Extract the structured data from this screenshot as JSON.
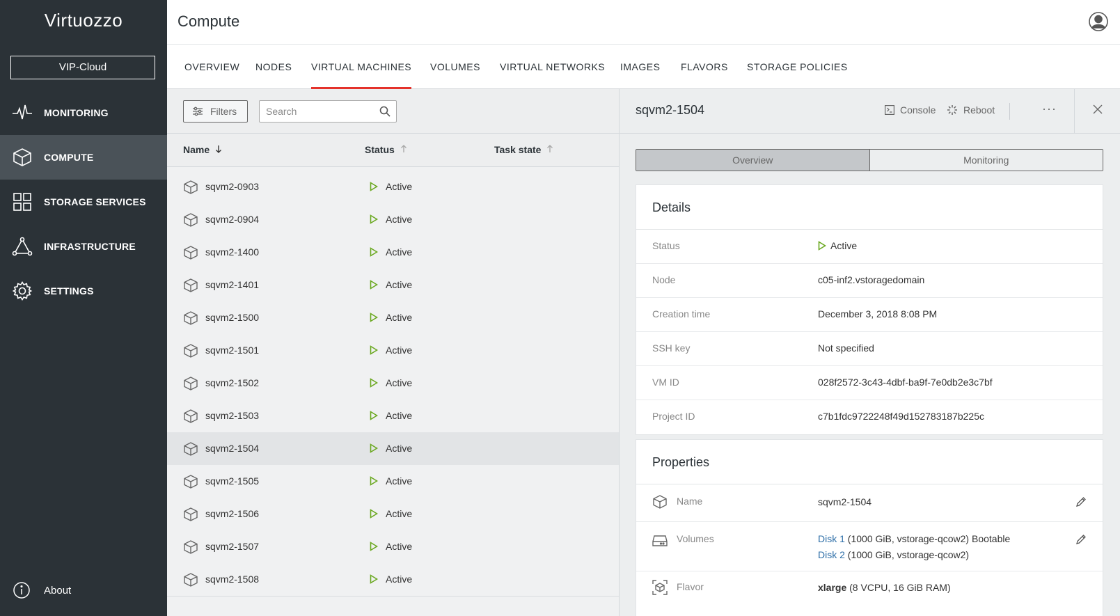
{
  "brand": {
    "logo_text": "Virtuozzo",
    "logo_mark": "z"
  },
  "sidebar": {
    "project_button": "VIP-Cloud",
    "items": [
      {
        "label": "MONITORING",
        "icon": "pulse-icon"
      },
      {
        "label": "COMPUTE",
        "icon": "cube-icon",
        "active": true
      },
      {
        "label": "STORAGE SERVICES",
        "icon": "grid-icon"
      },
      {
        "label": "INFRASTRUCTURE",
        "icon": "network-triangle-icon"
      },
      {
        "label": "SETTINGS",
        "icon": "gear-icon"
      }
    ],
    "about_label": "About"
  },
  "header": {
    "title": "Compute"
  },
  "tabs": [
    {
      "label": "OVERVIEW"
    },
    {
      "label": "NODES"
    },
    {
      "label": "VIRTUAL MACHINES",
      "active": true
    },
    {
      "label": "VOLUMES"
    },
    {
      "label": "VIRTUAL NETWORKS"
    },
    {
      "label": "IMAGES"
    },
    {
      "label": "FLAVORS"
    },
    {
      "label": "STORAGE POLICIES"
    }
  ],
  "list": {
    "filters_label": "Filters",
    "search_placeholder": "Search",
    "columns": {
      "name": "Name",
      "status": "Status",
      "task_state": "Task state"
    },
    "rows": [
      {
        "name": "sqvm2-0903",
        "status": "Active"
      },
      {
        "name": "sqvm2-0904",
        "status": "Active"
      },
      {
        "name": "sqvm2-1400",
        "status": "Active"
      },
      {
        "name": "sqvm2-1401",
        "status": "Active"
      },
      {
        "name": "sqvm2-1500",
        "status": "Active"
      },
      {
        "name": "sqvm2-1501",
        "status": "Active"
      },
      {
        "name": "sqvm2-1502",
        "status": "Active"
      },
      {
        "name": "sqvm2-1503",
        "status": "Active"
      },
      {
        "name": "sqvm2-1504",
        "status": "Active",
        "selected": true
      },
      {
        "name": "sqvm2-1505",
        "status": "Active"
      },
      {
        "name": "sqvm2-1506",
        "status": "Active"
      },
      {
        "name": "sqvm2-1507",
        "status": "Active"
      },
      {
        "name": "sqvm2-1508",
        "status": "Active"
      }
    ]
  },
  "detail": {
    "title": "sqvm2-1504",
    "console_label": "Console",
    "reboot_label": "Reboot",
    "more_label": "···",
    "segments": {
      "overview": "Overview",
      "monitoring": "Monitoring"
    },
    "details": {
      "title": "Details",
      "rows": [
        {
          "key": "Status",
          "value": "Active"
        },
        {
          "key": "Node",
          "value": "c05-inf2.vstoragedomain"
        },
        {
          "key": "Creation time",
          "value": "December 3, 2018 8:08 PM"
        },
        {
          "key": "SSH key",
          "value": "Not specified"
        },
        {
          "key": "VM ID",
          "value": "028f2572-3c43-4dbf-ba9f-7e0db2e3c7bf"
        },
        {
          "key": "Project ID",
          "value": "c7b1fdc9722248f49d152783187b225c"
        }
      ]
    },
    "properties": {
      "title": "Properties",
      "name": {
        "key": "Name",
        "value": "sqvm2-1504"
      },
      "volumes": {
        "key": "Volumes",
        "disk1_link": "Disk 1",
        "disk1_info": " (1000 GiB, vstorage-qcow2) Bootable",
        "disk2_link": "Disk 2",
        "disk2_info": " (1000 GiB, vstorage-qcow2)"
      },
      "flavor": {
        "key": "Flavor",
        "value": "xlarge",
        "info": " (8 VCPU, 16 GiB RAM)"
      }
    }
  },
  "colors": {
    "sidebar_bg": "#2b3237",
    "accent_red": "#e4322b",
    "status_green": "#6aa820",
    "link_blue": "#2e6fa8"
  }
}
